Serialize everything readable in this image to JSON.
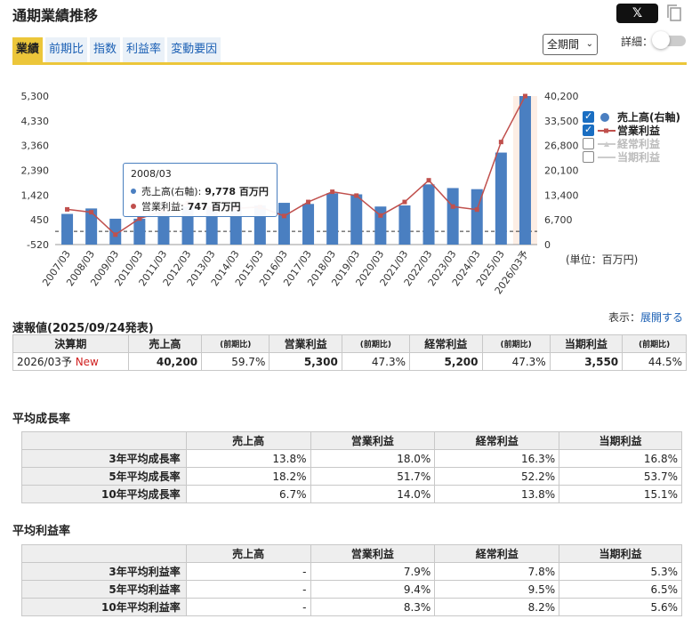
{
  "header": {
    "title": "通期業績推移",
    "share_x": "𝕏",
    "detail_label": "詳細："
  },
  "tabs": [
    "業績",
    "前期比",
    "指数",
    "利益率",
    "変動要因"
  ],
  "period_select": {
    "value": "全期間"
  },
  "chart_data": {
    "type": "bar+line",
    "categories": [
      "2007/03",
      "2008/03",
      "2009/03",
      "2010/03",
      "2011/03",
      "2012/03",
      "2013/03",
      "2014/03",
      "2015/03",
      "2016/03",
      "2017/03",
      "2018/03",
      "2019/03",
      "2020/03",
      "2021/03",
      "2022/03",
      "2023/03",
      "2024/03",
      "2025/03",
      "2026/03予"
    ],
    "y_left_ticks": [
      "5,300",
      "4,330",
      "3,360",
      "2,390",
      "1,420",
      "450",
      "-520"
    ],
    "y_left_range": [
      -520,
      5300
    ],
    "y_right_ticks": [
      "40,200",
      "33,500",
      "26,800",
      "20,100",
      "13,400",
      "6,700",
      "0"
    ],
    "y_right_range": [
      0,
      40200
    ],
    "series": [
      {
        "name": "売上高(右軸)",
        "type": "bar",
        "axis": "right",
        "color": "#4a7fc1",
        "values": [
          8300,
          9778,
          7000,
          7000,
          8800,
          10300,
          10500,
          10700,
          10600,
          11300,
          11000,
          13900,
          13600,
          10300,
          10600,
          16300,
          15300,
          15000,
          24900,
          40200
        ]
      },
      {
        "name": "営業利益",
        "type": "line",
        "axis": "left",
        "color": "#c0504d",
        "values": [
          860,
          747,
          -130,
          500,
          800,
          1100,
          900,
          900,
          950,
          600,
          1150,
          1550,
          1400,
          620,
          1150,
          2000,
          970,
          850,
          3500,
          5300
        ]
      }
    ],
    "legend": [
      {
        "label": "売上高(右軸)",
        "checked": true
      },
      {
        "label": "営業利益",
        "checked": true
      },
      {
        "label": "経常利益",
        "checked": false
      },
      {
        "label": "当期利益",
        "checked": false
      }
    ],
    "unit": "(単位：百万円)"
  },
  "tooltip": {
    "date": "2008/03",
    "rows": [
      {
        "label": "売上高(右軸):",
        "value": "9,778 百万円",
        "color": "#4a7fc1"
      },
      {
        "label": "営業利益:",
        "value": "747 百万円",
        "color": "#c0504d"
      }
    ]
  },
  "flash": {
    "title": "速報値(2025/09/24発表)",
    "hint_prefix": "表示：",
    "hint_link": "展開する",
    "headers": [
      "決算期",
      "売上高",
      "(前期比)",
      "営業利益",
      "(前期比)",
      "経常利益",
      "(前期比)",
      "当期利益",
      "(前期比)"
    ],
    "row": {
      "period": "2026/03予",
      "new": "New",
      "cells": [
        "40,200",
        "59.7%",
        "5,300",
        "47.3%",
        "5,200",
        "47.3%",
        "3,550",
        "44.5%"
      ]
    }
  },
  "growth": {
    "title": "平均成長率",
    "headers": [
      "売上高",
      "営業利益",
      "経常利益",
      "当期利益"
    ],
    "rows": [
      {
        "label": "3年平均成長率",
        "cells": [
          "13.8%",
          "18.0%",
          "16.3%",
          "16.8%"
        ]
      },
      {
        "label": "5年平均成長率",
        "cells": [
          "18.2%",
          "51.7%",
          "52.2%",
          "53.7%"
        ]
      },
      {
        "label": "10年平均成長率",
        "cells": [
          "6.7%",
          "14.0%",
          "13.8%",
          "15.1%"
        ]
      }
    ]
  },
  "margin": {
    "title": "平均利益率",
    "headers": [
      "売上高",
      "営業利益",
      "経常利益",
      "当期利益"
    ],
    "rows": [
      {
        "label": "3年平均利益率",
        "cells": [
          "-",
          "7.9%",
          "7.8%",
          "5.3%"
        ]
      },
      {
        "label": "5年平均利益率",
        "cells": [
          "-",
          "9.4%",
          "9.5%",
          "6.5%"
        ]
      },
      {
        "label": "10年平均利益率",
        "cells": [
          "-",
          "8.3%",
          "8.2%",
          "5.6%"
        ]
      }
    ]
  }
}
